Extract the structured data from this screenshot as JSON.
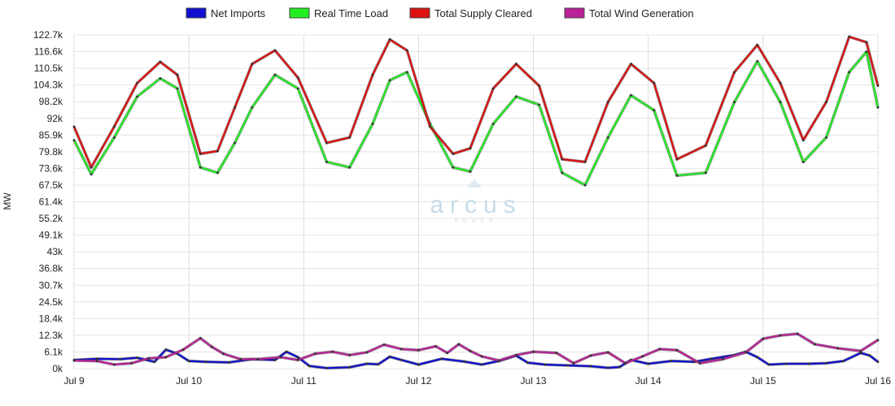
{
  "chart_data": {
    "type": "line",
    "legend_position": "top-center",
    "grid": true,
    "ylabel": "MW",
    "ylim": [
      0,
      122700
    ],
    "xlim": [
      0,
      7
    ],
    "y_ticks": [
      "0k",
      "6.1k",
      "12.3k",
      "18.4k",
      "24.5k",
      "30.7k",
      "36.8k",
      "43k",
      "49.1k",
      "55.2k",
      "61.4k",
      "67.5k",
      "73.6k",
      "79.8k",
      "85.9k",
      "92k",
      "98.2k",
      "104.3k",
      "110.5k",
      "116.6k",
      "122.7k"
    ],
    "x_ticks": [
      "Jul 9",
      "Jul 10",
      "Jul 11",
      "Jul 12",
      "Jul 13",
      "Jul 14",
      "Jul 15",
      "Jul 16"
    ],
    "watermark": {
      "text": "arcus",
      "subtext": "POWER"
    },
    "series": [
      {
        "name": "Net Imports",
        "color": "#1010d0",
        "x": [
          0,
          0.2,
          0.4,
          0.55,
          0.7,
          0.8,
          0.9,
          1.0,
          1.15,
          1.35,
          1.55,
          1.75,
          1.85,
          1.95,
          2.05,
          2.2,
          2.4,
          2.55,
          2.65,
          2.75,
          2.85,
          3.0,
          3.2,
          3.4,
          3.55,
          3.7,
          3.85,
          3.95,
          4.1,
          4.3,
          4.5,
          4.65,
          4.75,
          4.85,
          5.0,
          5.2,
          5.4,
          5.55,
          5.75,
          5.85,
          5.95,
          6.05,
          6.2,
          6.4,
          6.55,
          6.7,
          6.85,
          6.93,
          7.0
        ],
        "values": [
          3200,
          3600,
          3500,
          4000,
          2500,
          7000,
          5500,
          2800,
          2500,
          2300,
          3500,
          3200,
          6200,
          4200,
          1000,
          200,
          500,
          1800,
          1600,
          4400,
          3200,
          1500,
          3600,
          2600,
          1500,
          2800,
          4800,
          2200,
          1500,
          1200,
          900,
          300,
          600,
          3200,
          1800,
          2800,
          2500,
          3600,
          5000,
          6200,
          4200,
          1500,
          1800,
          1800,
          2000,
          2800,
          5800,
          4800,
          2500
        ]
      },
      {
        "name": "Real Time Load",
        "color": "#22ee22",
        "x": [
          0,
          0.15,
          0.35,
          0.55,
          0.75,
          0.9,
          1.1,
          1.25,
          1.4,
          1.55,
          1.75,
          1.95,
          2.2,
          2.4,
          2.6,
          2.75,
          2.9,
          3.1,
          3.3,
          3.45,
          3.65,
          3.85,
          4.05,
          4.25,
          4.45,
          4.65,
          4.85,
          5.05,
          5.25,
          5.5,
          5.75,
          5.95,
          6.15,
          6.35,
          6.55,
          6.75,
          6.9,
          7.0
        ],
        "values": [
          84000,
          71500,
          85000,
          100000,
          106700,
          103000,
          74000,
          72000,
          83000,
          96000,
          108000,
          103000,
          76000,
          74000,
          90000,
          106000,
          109000,
          90000,
          74000,
          72500,
          90000,
          100000,
          97000,
          72000,
          67500,
          85000,
          100500,
          95000,
          71000,
          72000,
          98000,
          113000,
          98000,
          76000,
          85000,
          109000,
          116500,
          96000
        ]
      },
      {
        "name": "Total Supply Cleared",
        "color": "#dd1111",
        "x": [
          0,
          0.15,
          0.35,
          0.55,
          0.75,
          0.9,
          1.1,
          1.25,
          1.4,
          1.55,
          1.75,
          1.95,
          2.2,
          2.4,
          2.6,
          2.75,
          2.9,
          3.1,
          3.3,
          3.45,
          3.65,
          3.85,
          4.05,
          4.25,
          4.45,
          4.65,
          4.85,
          5.05,
          5.25,
          5.5,
          5.75,
          5.95,
          6.15,
          6.35,
          6.55,
          6.75,
          6.9,
          7.0
        ],
        "values": [
          89000,
          74000,
          89000,
          105000,
          112800,
          108000,
          79000,
          80000,
          96000,
          112000,
          117000,
          107000,
          83000,
          85000,
          108000,
          121000,
          117000,
          89000,
          79000,
          81000,
          103000,
          112000,
          104000,
          77000,
          76000,
          98000,
          112000,
          105000,
          77000,
          82000,
          109000,
          119000,
          105000,
          84000,
          98000,
          122000,
          120000,
          104000
        ]
      },
      {
        "name": "Total Wind Generation",
        "color": "#bb2299",
        "x": [
          0,
          0.2,
          0.35,
          0.5,
          0.65,
          0.8,
          0.95,
          1.1,
          1.2,
          1.3,
          1.45,
          1.6,
          1.8,
          1.95,
          2.1,
          2.25,
          2.4,
          2.55,
          2.7,
          2.85,
          3.0,
          3.15,
          3.25,
          3.35,
          3.45,
          3.55,
          3.7,
          3.85,
          4.0,
          4.2,
          4.35,
          4.5,
          4.65,
          4.8,
          4.95,
          5.1,
          5.25,
          5.45,
          5.65,
          5.85,
          6.0,
          6.15,
          6.3,
          6.45,
          6.65,
          6.85,
          7.0
        ],
        "values": [
          3000,
          2800,
          1500,
          2000,
          3800,
          4200,
          7000,
          11200,
          8000,
          5500,
          3500,
          3500,
          4200,
          3200,
          5500,
          6200,
          5000,
          6000,
          8800,
          7200,
          6800,
          8200,
          5800,
          9000,
          6500,
          4500,
          3000,
          5000,
          6200,
          5800,
          2000,
          4800,
          6000,
          2000,
          4500,
          7200,
          6800,
          2000,
          3500,
          6000,
          11000,
          12200,
          12800,
          9000,
          7500,
          6500,
          10500
        ]
      }
    ]
  }
}
